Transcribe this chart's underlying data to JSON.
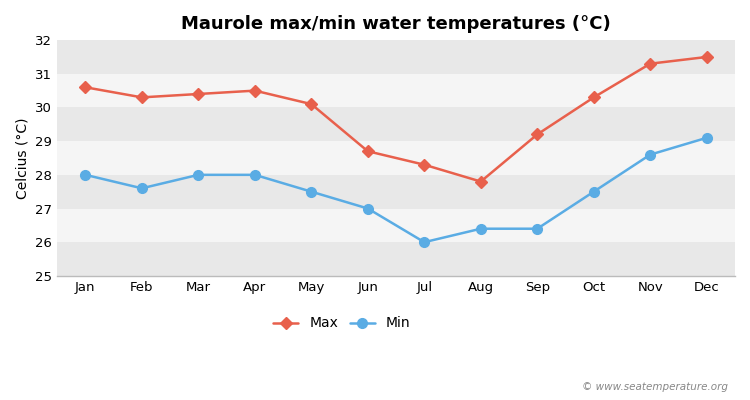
{
  "title": "Maurole max/min water temperatures (°C)",
  "ylabel": "Celcius (°C)",
  "months": [
    "Jan",
    "Feb",
    "Mar",
    "Apr",
    "May",
    "Jun",
    "Jul",
    "Aug",
    "Sep",
    "Oct",
    "Nov",
    "Dec"
  ],
  "max_values": [
    30.6,
    30.3,
    30.4,
    30.5,
    30.1,
    28.7,
    28.3,
    27.8,
    29.2,
    30.3,
    31.3,
    31.5
  ],
  "min_values": [
    28.0,
    27.6,
    28.0,
    28.0,
    27.5,
    27.0,
    26.0,
    26.4,
    26.4,
    27.5,
    28.6,
    29.1
  ],
  "max_color": "#e8604c",
  "min_color": "#5aace4",
  "ylim": [
    25,
    32
  ],
  "yticks": [
    25,
    26,
    27,
    28,
    29,
    30,
    31,
    32
  ],
  "band_colors": [
    "#e8e8e8",
    "#f5f5f5"
  ],
  "figure_bg": "#ffffff",
  "legend_labels": [
    "Max",
    "Min"
  ],
  "watermark": "© www.seatemperature.org",
  "title_fontsize": 13,
  "label_fontsize": 10,
  "tick_fontsize": 9.5,
  "marker_style_max": "D",
  "marker_style_min": "o",
  "marker_size_max": 6,
  "marker_size_min": 7,
  "linewidth": 1.8
}
